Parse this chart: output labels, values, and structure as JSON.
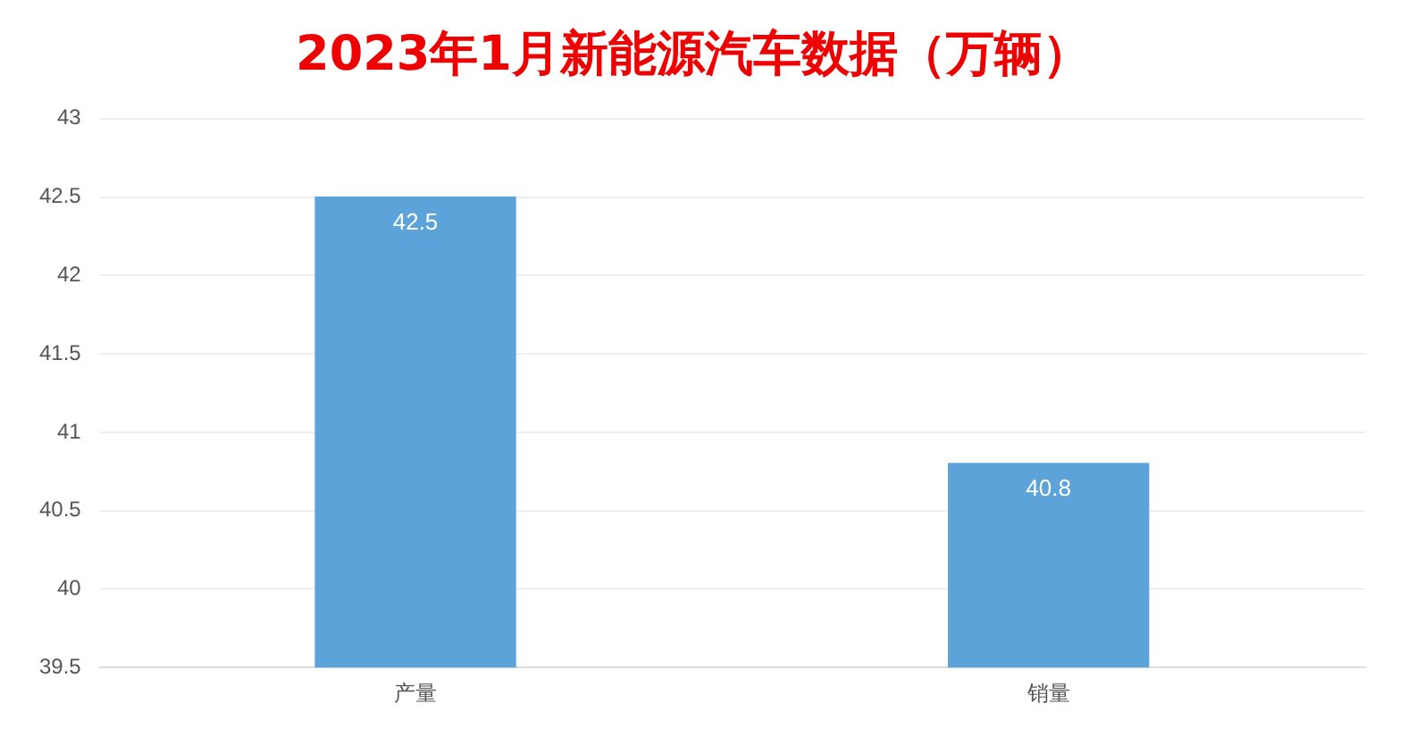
{
  "chart_data": {
    "type": "bar",
    "title": "2023年1月新能源汽车数据（万辆）",
    "categories": [
      "产量",
      "销量"
    ],
    "values": [
      42.5,
      40.8
    ],
    "color": "#5ba3d9",
    "ylim": [
      39.5,
      43
    ],
    "yticks": [
      39.5,
      40,
      40.5,
      41,
      41.5,
      42,
      42.5,
      43
    ],
    "grid": "y",
    "data_labels": true,
    "legend": false
  }
}
